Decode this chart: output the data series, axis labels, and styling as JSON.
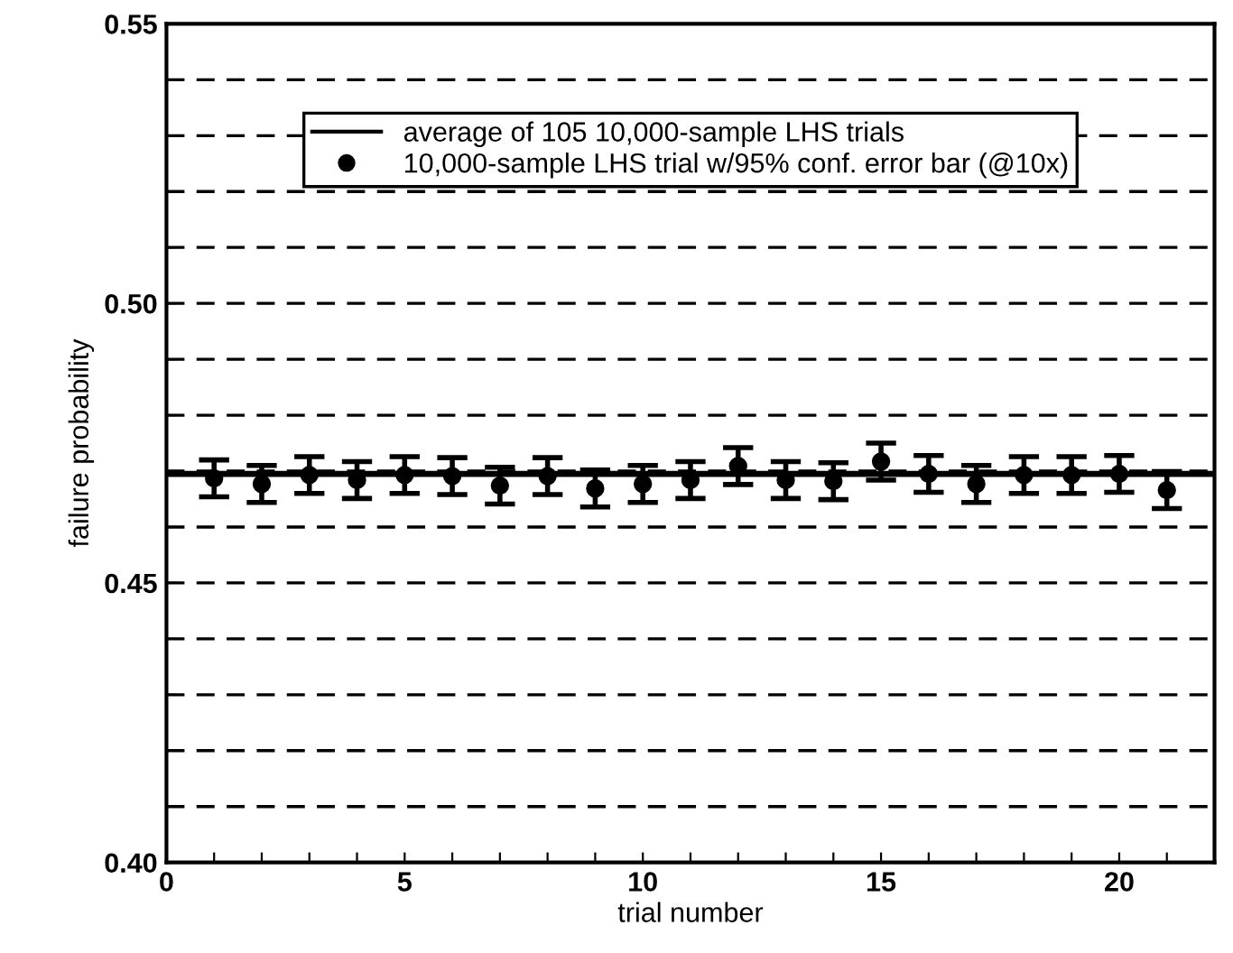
{
  "chart_data": {
    "type": "scatter",
    "xlabel": "trial number",
    "ylabel": "failure probability",
    "xlim": [
      0,
      22
    ],
    "ylim": [
      0.4,
      0.55
    ],
    "xticks": [
      0,
      {
        "value": 1,
        "label": null
      },
      {
        "value": 2,
        "label": null
      },
      {
        "value": 3,
        "label": null
      },
      {
        "value": 4,
        "label": null
      },
      5,
      {
        "value": 6,
        "label": null
      },
      {
        "value": 7,
        "label": null
      },
      {
        "value": 8,
        "label": null
      },
      {
        "value": 9,
        "label": null
      },
      10,
      {
        "value": 11,
        "label": null
      },
      {
        "value": 12,
        "label": null
      },
      {
        "value": 13,
        "label": null
      },
      {
        "value": 14,
        "label": null
      },
      15,
      {
        "value": 16,
        "label": null
      },
      {
        "value": 17,
        "label": null
      },
      {
        "value": 18,
        "label": null
      },
      {
        "value": 19,
        "label": null
      },
      20,
      {
        "value": 21,
        "label": null
      }
    ],
    "yticks": [
      {
        "value": 0.4,
        "label": "0.40"
      },
      {
        "value": 0.41,
        "label": null
      },
      {
        "value": 0.42,
        "label": null
      },
      {
        "value": 0.43,
        "label": null
      },
      {
        "value": 0.44,
        "label": null
      },
      {
        "value": 0.45,
        "label": "0.45"
      },
      {
        "value": 0.46,
        "label": null
      },
      {
        "value": 0.47,
        "label": null
      },
      {
        "value": 0.48,
        "label": null
      },
      {
        "value": 0.49,
        "label": null
      },
      {
        "value": 0.5,
        "label": "0.50"
      },
      {
        "value": 0.51,
        "label": null
      },
      {
        "value": 0.52,
        "label": null
      },
      {
        "value": 0.53,
        "label": null
      },
      {
        "value": 0.54,
        "label": null
      },
      {
        "value": 0.55,
        "label": "0.55"
      }
    ],
    "grid": "y",
    "legend": "top",
    "series": [
      {
        "name": "average of 105 10,000-sample LHS trials",
        "type": "line",
        "color": "#000000",
        "x": [
          0,
          22
        ],
        "values": [
          0.4695,
          0.4695
        ],
        "line_style": "solid",
        "marker": "none"
      },
      {
        "name": "10,000-sample LHS trial w/95% conf. error bar (@10x)",
        "color": "#000000",
        "marker": "circle",
        "x": [
          1,
          2,
          3,
          4,
          5,
          6,
          7,
          8,
          9,
          10,
          11,
          12,
          13,
          14,
          15,
          16,
          17,
          18,
          19,
          20,
          21
        ],
        "values": [
          0.4687,
          0.4677,
          0.4693,
          0.4684,
          0.4693,
          0.4691,
          0.4674,
          0.4691,
          0.4669,
          0.4677,
          0.4684,
          0.4709,
          0.4684,
          0.4682,
          0.4717,
          0.4695,
          0.4677,
          0.4693,
          0.4693,
          0.4695,
          0.4666
        ],
        "errors": [
          0.0033,
          0.0033,
          0.0033,
          0.0033,
          0.0033,
          0.0033,
          0.0033,
          0.0033,
          0.0033,
          0.0033,
          0.0033,
          0.0033,
          0.0033,
          0.0033,
          0.0033,
          0.0033,
          0.0033,
          0.0033,
          0.0033,
          0.0033,
          0.0033
        ]
      }
    ]
  }
}
